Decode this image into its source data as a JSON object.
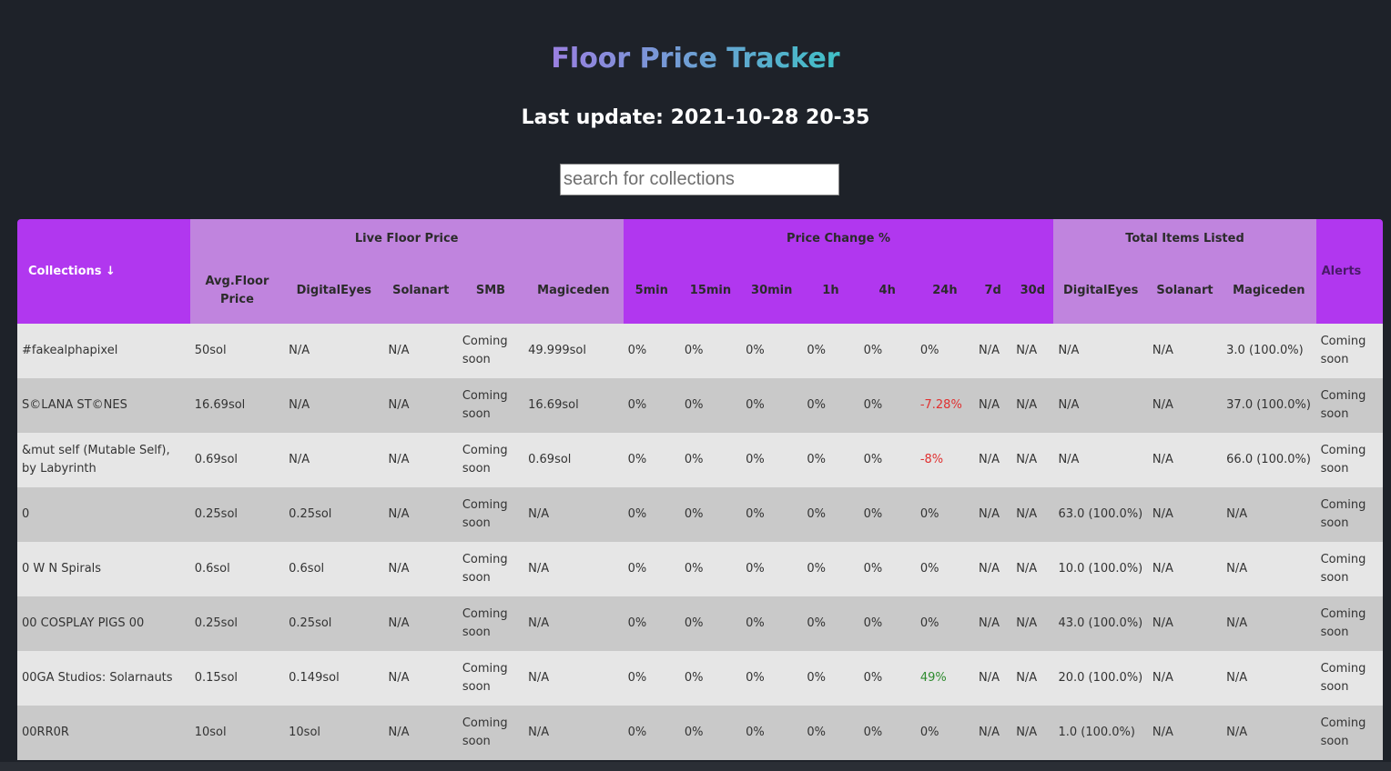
{
  "header": {
    "title": "Floor Price Tracker",
    "last_update": "Last update: 2021-10-28 20-35"
  },
  "search": {
    "placeholder": "search for collections",
    "value": ""
  },
  "table": {
    "groups": {
      "live_floor_price": "Live Floor Price",
      "price_change": "Price Change %",
      "total_items_listed": "Total Items Listed"
    },
    "columns": {
      "collections": "Collections ↓",
      "avg_floor": "Avg.Floor Price",
      "lf_digitaleyes": "DigitalEyes",
      "lf_solanart": "Solanart",
      "lf_smb": "SMB",
      "lf_magiceden": "Magiceden",
      "pc_5min": "5min",
      "pc_15min": "15min",
      "pc_30min": "30min",
      "pc_1h": "1h",
      "pc_4h": "4h",
      "pc_24h": "24h",
      "pc_7d": "7d",
      "pc_30d": "30d",
      "tl_digitaleyes": "DigitalEyes",
      "tl_solanart": "Solanart",
      "tl_magiceden": "Magiceden",
      "alerts": "Alerts"
    },
    "rows": [
      {
        "name": "#fakealphapixel",
        "avg": "50sol",
        "de": "N/A",
        "sa": "N/A",
        "smb": "Coming soon",
        "me": "49.999sol",
        "c5m": "0%",
        "c15m": "0%",
        "c30m": "0%",
        "c1h": "0%",
        "c4h": "0%",
        "c24h": "0%",
        "c7d": "N/A",
        "c30d": "N/A",
        "tde": "N/A",
        "tsa": "N/A",
        "tme": "3.0 (100.0%)",
        "alerts": "Coming soon"
      },
      {
        "name": "S©LANA ST©NES",
        "avg": "16.69sol",
        "de": "N/A",
        "sa": "N/A",
        "smb": "Coming soon",
        "me": "16.69sol",
        "c5m": "0%",
        "c15m": "0%",
        "c30m": "0%",
        "c1h": "0%",
        "c4h": "0%",
        "c24h": "-7.28%",
        "c7d": "N/A",
        "c30d": "N/A",
        "tde": "N/A",
        "tsa": "N/A",
        "tme": "37.0 (100.0%)",
        "alerts": "Coming soon"
      },
      {
        "name": "&mut self (Mutable Self), by Labyrinth",
        "avg": "0.69sol",
        "de": "N/A",
        "sa": "N/A",
        "smb": "Coming soon",
        "me": "0.69sol",
        "c5m": "0%",
        "c15m": "0%",
        "c30m": "0%",
        "c1h": "0%",
        "c4h": "0%",
        "c24h": "-8%",
        "c7d": "N/A",
        "c30d": "N/A",
        "tde": "N/A",
        "tsa": "N/A",
        "tme": "66.0 (100.0%)",
        "alerts": "Coming soon"
      },
      {
        "name": "0",
        "avg": "0.25sol",
        "de": "0.25sol",
        "sa": "N/A",
        "smb": "Coming soon",
        "me": "N/A",
        "c5m": "0%",
        "c15m": "0%",
        "c30m": "0%",
        "c1h": "0%",
        "c4h": "0%",
        "c24h": "0%",
        "c7d": "N/A",
        "c30d": "N/A",
        "tde": "63.0 (100.0%)",
        "tsa": "N/A",
        "tme": "N/A",
        "alerts": "Coming soon"
      },
      {
        "name": "0 W N Spirals",
        "avg": "0.6sol",
        "de": "0.6sol",
        "sa": "N/A",
        "smb": "Coming soon",
        "me": "N/A",
        "c5m": "0%",
        "c15m": "0%",
        "c30m": "0%",
        "c1h": "0%",
        "c4h": "0%",
        "c24h": "0%",
        "c7d": "N/A",
        "c30d": "N/A",
        "tde": "10.0 (100.0%)",
        "tsa": "N/A",
        "tme": "N/A",
        "alerts": "Coming soon"
      },
      {
        "name": "00 COSPLAY PIGS 00",
        "avg": "0.25sol",
        "de": "0.25sol",
        "sa": "N/A",
        "smb": "Coming soon",
        "me": "N/A",
        "c5m": "0%",
        "c15m": "0%",
        "c30m": "0%",
        "c1h": "0%",
        "c4h": "0%",
        "c24h": "0%",
        "c7d": "N/A",
        "c30d": "N/A",
        "tde": "43.0 (100.0%)",
        "tsa": "N/A",
        "tme": "N/A",
        "alerts": "Coming soon"
      },
      {
        "name": "00GA Studios: Solarnauts",
        "avg": "0.15sol",
        "de": "0.149sol",
        "sa": "N/A",
        "smb": "Coming soon",
        "me": "N/A",
        "c5m": "0%",
        "c15m": "0%",
        "c30m": "0%",
        "c1h": "0%",
        "c4h": "0%",
        "c24h": "49%",
        "c7d": "N/A",
        "c30d": "N/A",
        "tde": "20.0 (100.0%)",
        "tsa": "N/A",
        "tme": "N/A",
        "alerts": "Coming soon"
      },
      {
        "name": "00RR0R",
        "avg": "10sol",
        "de": "10sol",
        "sa": "N/A",
        "smb": "Coming soon",
        "me": "N/A",
        "c5m": "0%",
        "c15m": "0%",
        "c30m": "0%",
        "c1h": "0%",
        "c4h": "0%",
        "c24h": "0%",
        "c7d": "N/A",
        "c30d": "N/A",
        "tde": "1.0 (100.0%)",
        "tsa": "N/A",
        "tme": "N/A",
        "alerts": "Coming soon"
      }
    ]
  },
  "colors": {
    "background": "#1e2229",
    "header_purple": "#b137ef",
    "header_lilac": "#c084de",
    "row_light": "#e6e6e6",
    "row_dark": "#c9c9c9",
    "negative": "#e03030",
    "positive": "#2e8b2e"
  }
}
